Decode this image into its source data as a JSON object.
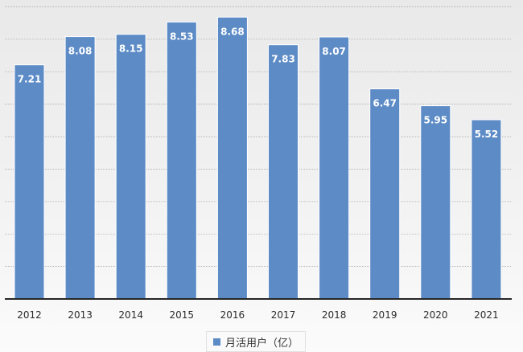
{
  "chart_data": {
    "type": "bar",
    "title": "",
    "xlabel": "",
    "ylabel": "",
    "categories": [
      "2012",
      "2013",
      "2014",
      "2015",
      "2016",
      "2017",
      "2018",
      "2019",
      "2020",
      "2021"
    ],
    "series": [
      {
        "name": "月活用户（亿）",
        "values": [
          7.21,
          8.08,
          8.15,
          8.53,
          8.68,
          7.83,
          8.07,
          6.47,
          5.95,
          5.52
        ],
        "data_labels": [
          "7.21",
          "8.08",
          "8.15",
          "8.53",
          "8.68",
          "7.83",
          "8.07",
          "6.47",
          "5.95",
          "5.52"
        ]
      }
    ],
    "ylim": [
      0,
      9
    ],
    "grid": true,
    "y_tick_labels_shown": false,
    "legend_position": "bottom",
    "colors": {
      "bar": "#5c8bc6"
    }
  }
}
